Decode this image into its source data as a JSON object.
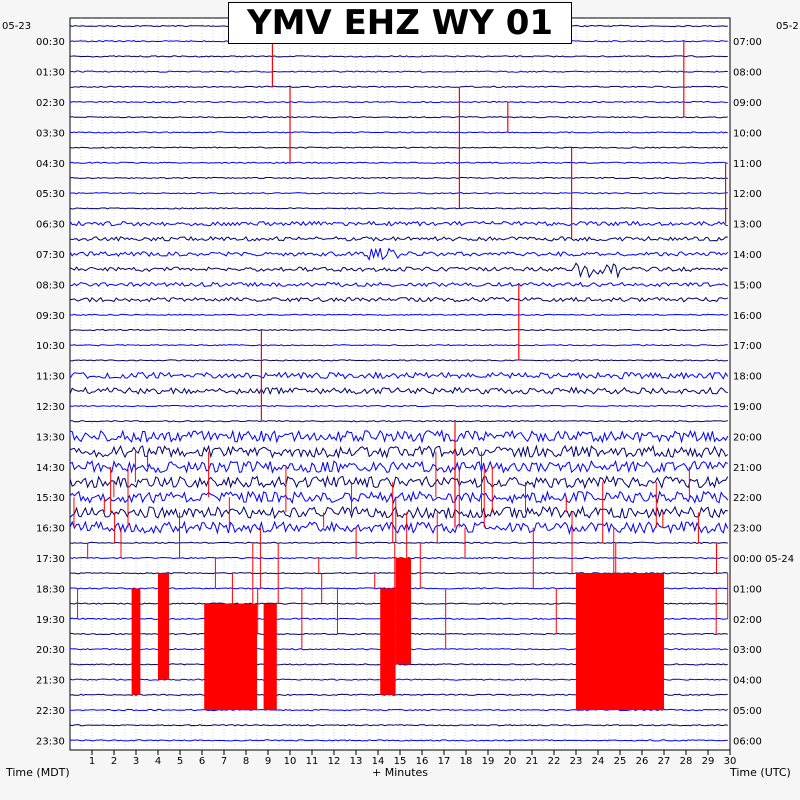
{
  "colors": {
    "background": "#f6f6f6",
    "plot_background": "#ffffff",
    "trace_colors": [
      "#00006e",
      "#0000ff"
    ],
    "event_color": "#ff0000",
    "grid_color": "#bbbbbb"
  },
  "chart_data": {
    "type": "helicorder",
    "title": "YMV EHZ WY 01",
    "left_corner_label": "05-23",
    "right_corner_label": "05-2",
    "left_axis_label": "Time (MDT)",
    "right_axis_label": "Time (UTC)",
    "x_axis_label": "+ Minutes",
    "xlim": [
      0,
      30
    ],
    "x_ticks": [
      1,
      2,
      3,
      4,
      5,
      6,
      7,
      8,
      9,
      10,
      11,
      12,
      13,
      14,
      15,
      16,
      17,
      18,
      19,
      20,
      21,
      22,
      23,
      24,
      25,
      26,
      27,
      28,
      29,
      30
    ],
    "row_minutes": 30,
    "rows": 48,
    "left_time_labels": [
      "00:30",
      "01:30",
      "02:30",
      "03:30",
      "04:30",
      "05:30",
      "06:30",
      "07:30",
      "08:30",
      "09:30",
      "10:30",
      "11:30",
      "12:30",
      "13:30",
      "14:30",
      "15:30",
      "16:30",
      "17:30",
      "18:30",
      "19:30",
      "20:30",
      "21:30",
      "22:30",
      "23:30"
    ],
    "right_time_labels": [
      "07:00",
      "08:00",
      "09:00",
      "10:00",
      "11:00",
      "12:00",
      "13:00",
      "14:00",
      "15:00",
      "16:00",
      "17:00",
      "18:00",
      "19:00",
      "20:00",
      "21:00",
      "22:00",
      "23:00",
      "00:00 05-24",
      "01:00",
      "02:00",
      "03:00",
      "04:00",
      "05:00",
      "06:00"
    ],
    "grid": true
  }
}
